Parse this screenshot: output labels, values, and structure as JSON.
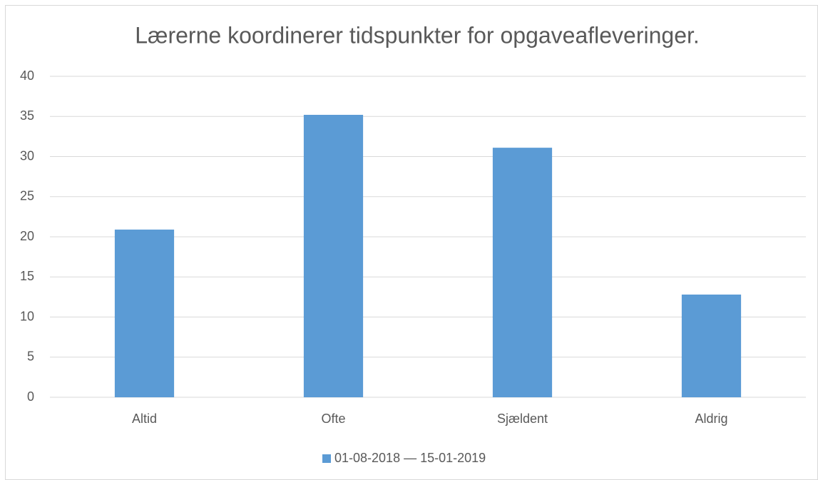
{
  "chart_data": {
    "type": "bar",
    "title": "Lærerne koordinerer tidspunkter for opgaveafleveringer.",
    "categories": [
      "Altid",
      "Ofte",
      "Sjældent",
      "Aldrig"
    ],
    "series": [
      {
        "name": "01-08-2018 — 15-01-2019",
        "color": "#5b9bd5",
        "values": [
          20.9,
          35.2,
          31.1,
          12.8
        ]
      }
    ],
    "ylim": [
      0,
      40
    ],
    "yticks": [
      0,
      5,
      10,
      15,
      20,
      25,
      30,
      35,
      40
    ],
    "grid": true,
    "legend": "bottom"
  }
}
